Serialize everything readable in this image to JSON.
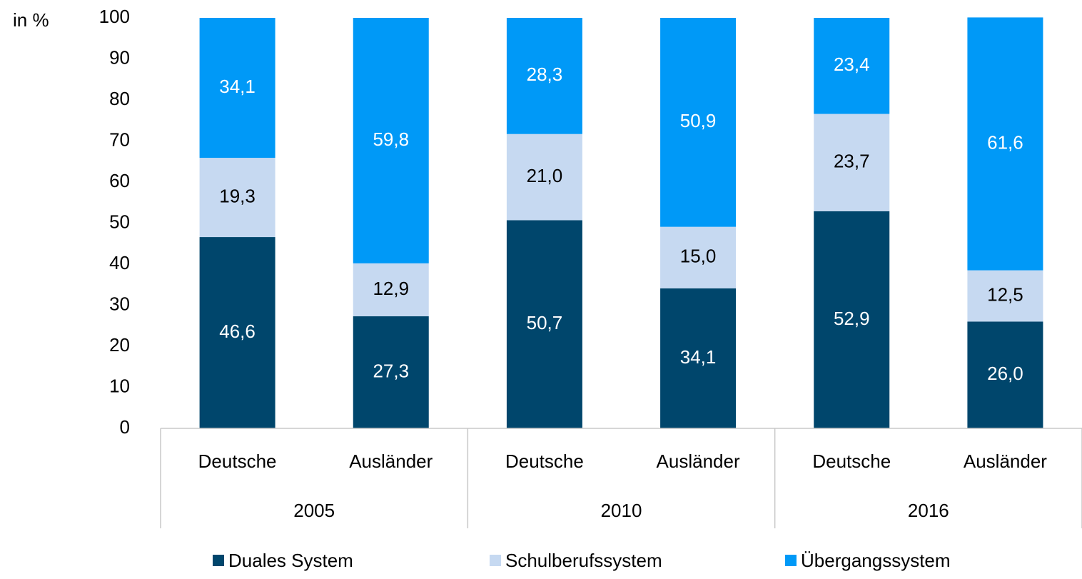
{
  "chart_data": {
    "type": "stacked-bar",
    "y_axis_label": "in %",
    "categories": [
      "Deutsche",
      "Ausländer",
      "Deutsche",
      "Ausländer",
      "Deutsche",
      "Ausländer"
    ],
    "groups": [
      "2005",
      "2010",
      "2016"
    ],
    "series": [
      {
        "name": "Duales System",
        "color": "#00466c",
        "label_color": "#ffffff",
        "values": [
          46.6,
          27.3,
          50.7,
          34.1,
          52.9,
          26.0
        ],
        "value_labels": [
          "46,6",
          "27,3",
          "50,7",
          "34,1",
          "52,9",
          "26,0"
        ]
      },
      {
        "name": "Schulberufssystem",
        "color": "#c6d9f1",
        "label_color": "#000000",
        "values": [
          19.3,
          12.9,
          21.0,
          15.0,
          23.7,
          12.5
        ],
        "value_labels": [
          "19,3",
          "12,9",
          "21,0",
          "15,0",
          "23,7",
          "12,5"
        ]
      },
      {
        "name": "Übergangssystem",
        "color": "#0099f7",
        "label_color": "#ffffff",
        "values": [
          34.1,
          59.8,
          28.3,
          50.9,
          23.4,
          61.6
        ],
        "value_labels": [
          "34,1",
          "59,8",
          "28,3",
          "50,9",
          "23,4",
          "61,6"
        ]
      }
    ],
    "ylim": [
      0,
      100
    ],
    "yticks": [
      0,
      10,
      20,
      30,
      40,
      50,
      60,
      70,
      80,
      90,
      100
    ]
  }
}
